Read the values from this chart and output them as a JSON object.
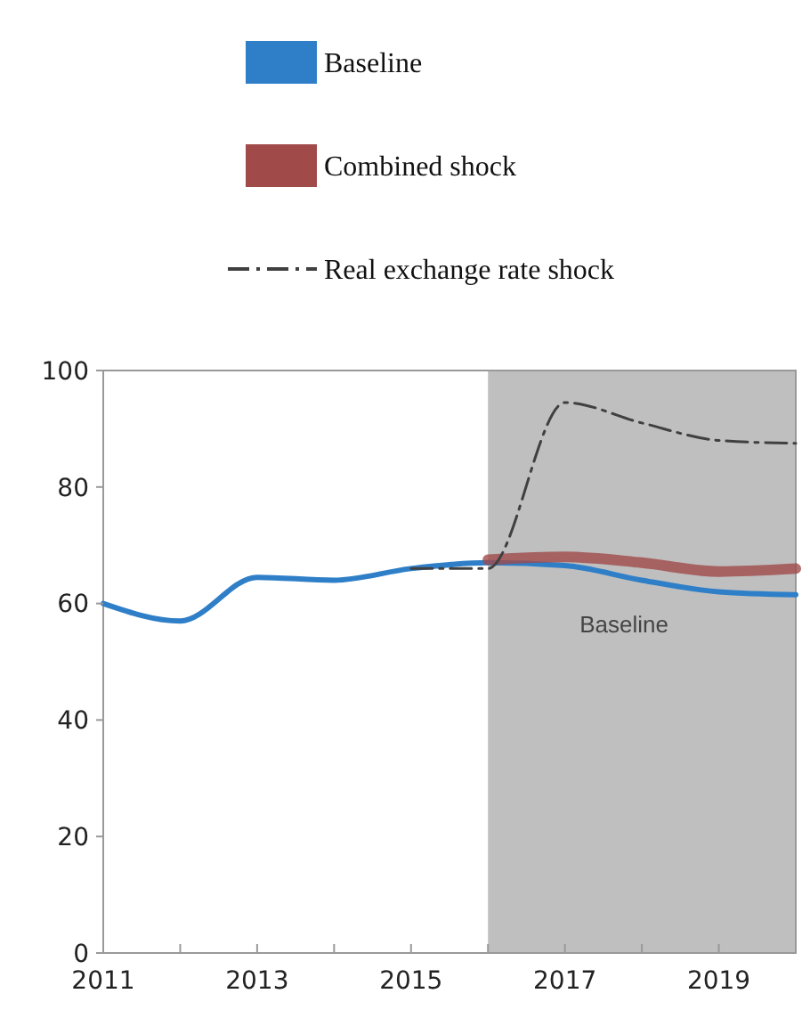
{
  "chart_data": {
    "type": "line",
    "x": [
      2011,
      2012,
      2013,
      2014,
      2015,
      2016,
      2017,
      2018,
      2019,
      2020
    ],
    "series": [
      {
        "name": "Baseline",
        "color": "#2f7fc8",
        "values": [
          60,
          57,
          64.5,
          64,
          66,
          67,
          66.5,
          64,
          62,
          61.5
        ]
      },
      {
        "name": "Combined shock",
        "color": "#a04a4a",
        "x": [
          2016,
          2017,
          2018,
          2019,
          2020
        ],
        "values": [
          67.5,
          68,
          67,
          65.5,
          66
        ]
      },
      {
        "name": "Real exchange rate shock",
        "color": "#404040",
        "line_style": "dashed",
        "x": [
          2015,
          2016,
          2017,
          2018,
          2019,
          2020
        ],
        "values": [
          66,
          66,
          94.5,
          91,
          88,
          87.5
        ]
      }
    ],
    "xlim": [
      2011,
      2020
    ],
    "xticks": [
      2011,
      {
        "value": 2012,
        "label": null
      },
      2013,
      {
        "value": 2014,
        "label": null
      },
      2015,
      {
        "value": 2016,
        "label": null
      },
      2017,
      {
        "value": 2018,
        "label": null
      },
      2019,
      {
        "value": 2020,
        "label": null
      }
    ],
    "ylim": [
      0,
      100
    ],
    "yticks": [
      0,
      20,
      40,
      60,
      80,
      100
    ],
    "bands": [
      {
        "axis": "x",
        "from": 2016,
        "to": 2020,
        "color": "#bfbfbf"
      }
    ],
    "annotations": [
      "Baseline"
    ],
    "legend": "top",
    "grid": false,
    "line_style": "solid"
  }
}
